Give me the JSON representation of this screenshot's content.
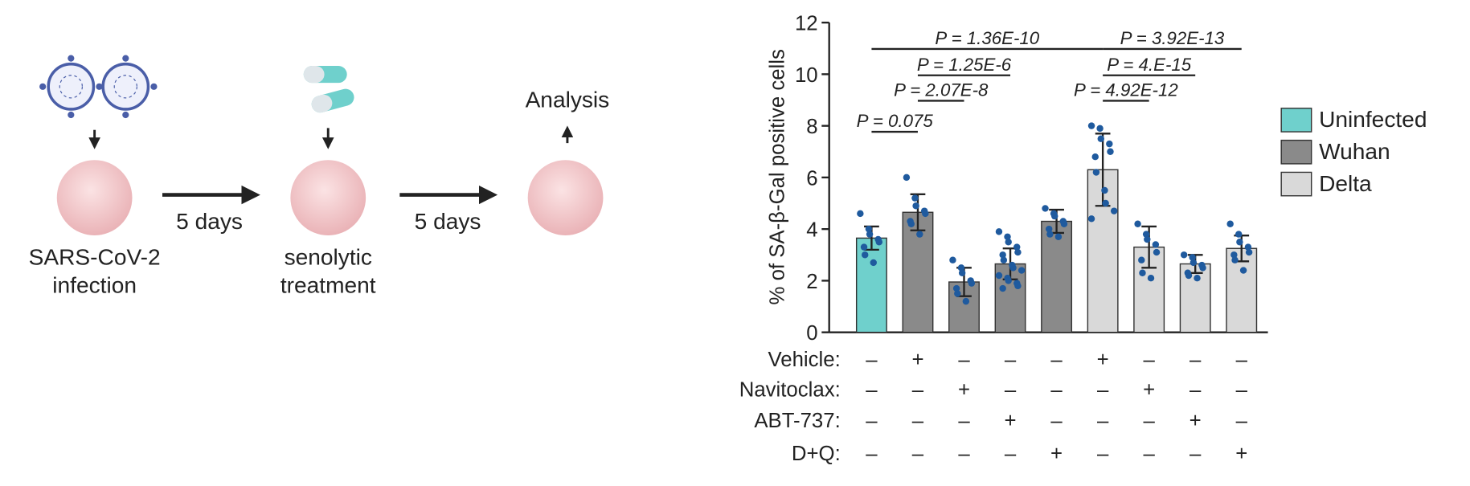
{
  "schematic": {
    "step1": [
      "SARS-CoV-2",
      "infection"
    ],
    "step2": [
      "senolytic",
      "treatment"
    ],
    "step3": "Analysis",
    "interval1": "5 days",
    "interval2": "5 days"
  },
  "chart_data": {
    "type": "bar",
    "y_label": "% of SA-β-Gal positive cells",
    "ylim": [
      0,
      12
    ],
    "yticks": [
      0,
      2,
      4,
      6,
      8,
      10,
      12
    ],
    "series": [
      {
        "name": "Uninfected",
        "color": "#6fd0cc",
        "values": [
          3.65,
          null,
          null,
          null,
          null,
          null,
          null,
          null,
          null
        ],
        "errors": [
          0.45,
          null,
          null,
          null,
          null,
          null,
          null,
          null,
          null
        ]
      },
      {
        "name": "Wuhan",
        "color": "#8a8a8a",
        "values": [
          null,
          4.65,
          1.95,
          2.65,
          4.3,
          null,
          null,
          null,
          null
        ],
        "errors": [
          null,
          0.7,
          0.55,
          0.6,
          0.45,
          null,
          null,
          null,
          null
        ]
      },
      {
        "name": "Delta",
        "color": "#d9d9d9",
        "values": [
          null,
          null,
          null,
          null,
          null,
          6.3,
          3.3,
          2.65,
          3.25
        ],
        "errors": [
          null,
          null,
          null,
          null,
          null,
          1.4,
          0.8,
          0.35,
          0.5
        ]
      }
    ],
    "points": [
      [
        4.6,
        4.0,
        3.8,
        3.6,
        3.5,
        3.3,
        3.0,
        2.7
      ],
      [
        6.0,
        5.2,
        4.9,
        4.7,
        4.6,
        4.3,
        4.2,
        3.8
      ],
      [
        2.8,
        2.5,
        2.3,
        2.0,
        1.9,
        1.7,
        1.5,
        1.2
      ],
      [
        3.9,
        3.7,
        3.5,
        3.3,
        3.1,
        3.0,
        2.8,
        2.6,
        2.5,
        2.4,
        2.2,
        2.1,
        2.0,
        1.9,
        1.8,
        1.7
      ],
      [
        4.8,
        4.6,
        4.5,
        4.3,
        4.2,
        4.0,
        3.8,
        3.7
      ],
      [
        8.0,
        7.9,
        7.5,
        7.3,
        7.0,
        6.8,
        6.2,
        5.5,
        5.0,
        4.7,
        4.4
      ],
      [
        4.2,
        3.8,
        3.6,
        3.4,
        3.1,
        2.8,
        2.3,
        2.1
      ],
      [
        3.0,
        2.9,
        2.7,
        2.6,
        2.5,
        2.3,
        2.2,
        2.1
      ],
      [
        4.2,
        3.8,
        3.5,
        3.3,
        3.1,
        3.0,
        2.8,
        2.4
      ]
    ],
    "row_labels": [
      "Vehicle:",
      "Navitoclax:",
      "ABT-737:",
      "D+Q:"
    ],
    "treatment_matrix": [
      [
        "–",
        "+",
        "–",
        "–",
        "–",
        "+",
        "–",
        "–",
        "–"
      ],
      [
        "–",
        "–",
        "+",
        "–",
        "–",
        "–",
        "+",
        "–",
        "–"
      ],
      [
        "–",
        "–",
        "–",
        "+",
        "–",
        "–",
        "–",
        "+",
        "–"
      ],
      [
        "–",
        "–",
        "–",
        "–",
        "+",
        "–",
        "–",
        "–",
        "+"
      ]
    ],
    "annotations": [
      {
        "text": "P = 1.36E-10",
        "from": 0,
        "to": 5
      },
      {
        "text": "P = 3.92E-13",
        "from": 5,
        "to": 8
      },
      {
        "text": "P = 1.25E-6",
        "from": 1,
        "to": 3
      },
      {
        "text": "P = 4.E-15",
        "from": 5,
        "to": 7
      },
      {
        "text": "P = 2.07E-8",
        "from": 1,
        "to": 2
      },
      {
        "text": "P = 4.92E-12",
        "from": 5,
        "to": 6
      },
      {
        "text": "P = 0.075",
        "from": 0,
        "to": 1
      }
    ]
  }
}
